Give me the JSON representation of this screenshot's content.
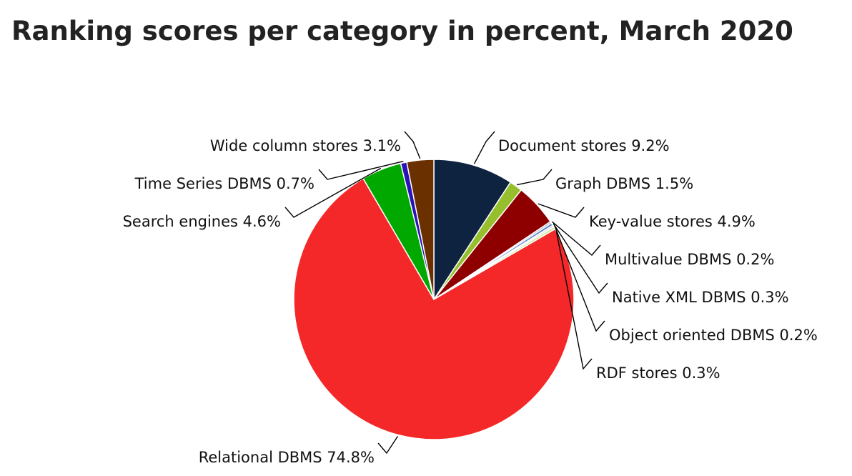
{
  "chart_data": {
    "type": "pie",
    "title": "Ranking scores per category in percent, March 2020",
    "unit": "%",
    "slices": [
      {
        "label": "Document stores",
        "value": 9.2,
        "color": "#0d2340"
      },
      {
        "label": "Graph DBMS",
        "value": 1.5,
        "color": "#96be2d"
      },
      {
        "label": "Key-value stores",
        "value": 4.9,
        "color": "#8e0000"
      },
      {
        "label": "Multivalue DBMS",
        "value": 0.2,
        "color": "#9aa0b0"
      },
      {
        "label": "Native XML DBMS",
        "value": 0.3,
        "color": "#5a80c8"
      },
      {
        "label": "Object oriented DBMS",
        "value": 0.2,
        "color": "#cfcfcf"
      },
      {
        "label": "RDF stores",
        "value": 0.3,
        "color": "#d8e8a0"
      },
      {
        "label": "Relational DBMS",
        "value": 74.8,
        "color": "#f42828"
      },
      {
        "label": "Search engines",
        "value": 4.6,
        "color": "#00a800"
      },
      {
        "label": "Time Series DBMS",
        "value": 0.7,
        "color": "#2a12b8"
      },
      {
        "label": "Wide column stores",
        "value": 3.1,
        "color": "#6b3000"
      }
    ]
  }
}
